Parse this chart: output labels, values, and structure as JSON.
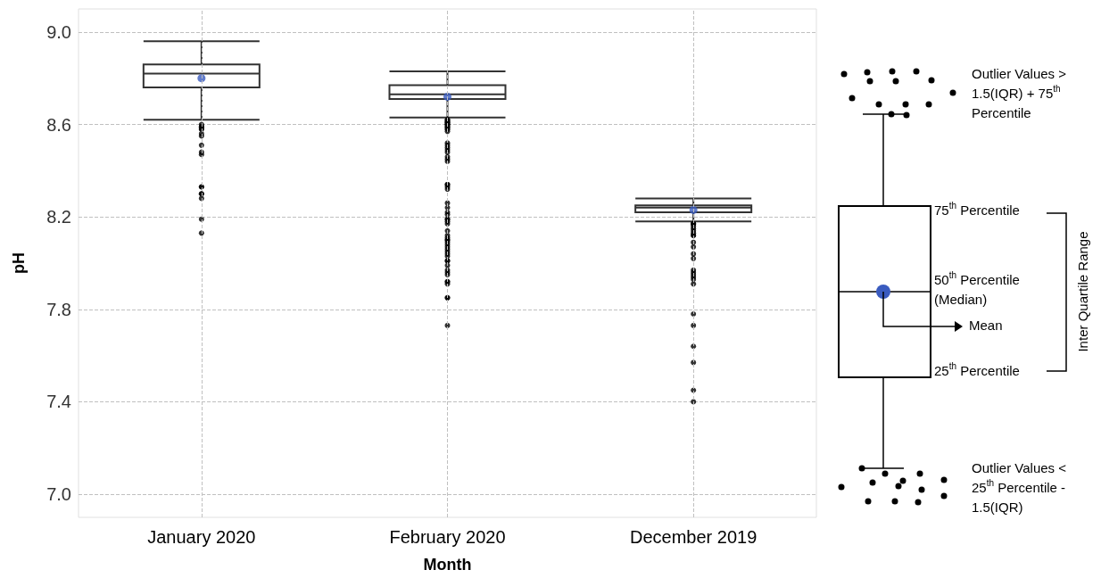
{
  "chart_data": {
    "type": "box",
    "xlabel": "Month",
    "ylabel": "pH",
    "categories": [
      "January 2020",
      "February 2020",
      "December 2019"
    ],
    "color": "#333333",
    "boxes": [
      {
        "low": 8.62,
        "q1": 8.76,
        "median": 8.82,
        "q3": 8.86,
        "high": 8.96,
        "mean": 8.8,
        "outliers": [
          8.6,
          8.58,
          8.56,
          8.59,
          8.59,
          8.58,
          8.55,
          8.51,
          8.47,
          8.48,
          8.33,
          8.3,
          8.33,
          8.3,
          8.28,
          8.19,
          8.13
        ]
      },
      {
        "low": 8.63,
        "q1": 8.71,
        "median": 8.73,
        "q3": 8.77,
        "high": 8.83,
        "mean": 8.72,
        "outliers": [
          8.62,
          8.62,
          8.61,
          8.61,
          8.61,
          8.6,
          8.6,
          8.6,
          8.59,
          8.59,
          8.58,
          8.58,
          8.57,
          8.52,
          8.51,
          8.49,
          8.5,
          8.48,
          8.46,
          8.45,
          8.44,
          8.34,
          8.33,
          8.34,
          8.32,
          8.26,
          8.24,
          8.22,
          8.21,
          8.19,
          8.19,
          8.17,
          8.18,
          8.14,
          8.12,
          8.11,
          8.1,
          8.1,
          8.09,
          8.08,
          8.07,
          8.06,
          8.05,
          8.04,
          8.03,
          8.01,
          8.01,
          7.99,
          7.97,
          7.96,
          7.95,
          7.92,
          7.92,
          7.91,
          7.85,
          7.85,
          7.73
        ]
      },
      {
        "low": 8.18,
        "q1": 8.22,
        "median": 8.24,
        "q3": 8.25,
        "high": 8.28,
        "mean": 8.23,
        "outliers": [
          8.17,
          8.17,
          8.17,
          8.16,
          8.15,
          8.14,
          8.13,
          8.12,
          8.12,
          8.09,
          8.07,
          8.04,
          8.02,
          7.97,
          7.96,
          7.95,
          7.94,
          7.93,
          7.91,
          7.78,
          7.73,
          7.64,
          7.57,
          7.45,
          7.4
        ]
      }
    ],
    "ylim": [
      6.9,
      9.1
    ],
    "yticks": [
      {
        "value": 7,
        "label": "7.0"
      },
      {
        "value": 7.4,
        "label": "7.4"
      },
      {
        "value": 7.8,
        "label": "7.8"
      },
      {
        "value": 8.2,
        "label": "8.2"
      },
      {
        "value": 8.6,
        "label": "8.6"
      },
      {
        "value": 9,
        "label": "9.0"
      }
    ],
    "grid": true,
    "annotations": [
      "Outlier Values > 1.5(IQR) + 75$^{th}$ Percentile",
      "75$^{th}$ Percentile",
      "50$^{th}$ Percentile (Median)",
      "Mean",
      "25$^{th}$ Percentile",
      "Inter Quartile Range",
      "Outlier Values < 25$^{th}$ Percentile - 1.5(IQR)"
    ]
  }
}
